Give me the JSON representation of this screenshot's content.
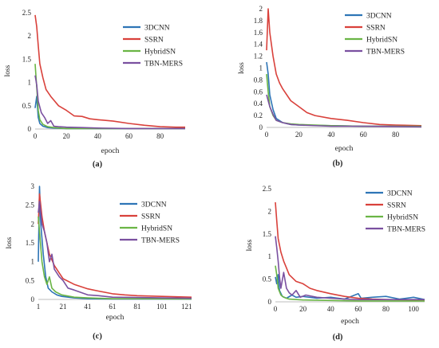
{
  "colors": {
    "3DCNN": "#2e75b6",
    "SSRN": "#d9413b",
    "HybridSN": "#6ab545",
    "TBN-MERS": "#7a50a0"
  },
  "chart_data": [
    {
      "type": "line",
      "panel_label": "(a)",
      "xlabel": "epoch",
      "ylabel": "loss",
      "xlim": [
        0,
        96
      ],
      "ylim": [
        0,
        2.5
      ],
      "xticks": [
        "0",
        "20",
        "40",
        "60",
        "80"
      ],
      "xtick_values": [
        0,
        20,
        40,
        60,
        80
      ],
      "yticks": [
        "0",
        "0.5",
        "1",
        "1.5",
        "2",
        "2.5"
      ],
      "ytick_values": [
        0,
        0.5,
        1,
        1.5,
        2,
        2.5
      ],
      "legend": "right",
      "series": [
        {
          "name": "3DCNN",
          "points": [
            [
              0,
              0.45
            ],
            [
              1,
              0.7
            ],
            [
              2,
              0.25
            ],
            [
              3,
              0.12
            ],
            [
              5,
              0.06
            ],
            [
              8,
              0.03
            ],
            [
              12,
              0.02
            ],
            [
              20,
              0.01
            ],
            [
              40,
              0.01
            ],
            [
              60,
              0.01
            ],
            [
              80,
              0.01
            ],
            [
              96,
              0.01
            ]
          ]
        },
        {
          "name": "SSRN",
          "points": [
            [
              0,
              2.45
            ],
            [
              1,
              2.2
            ],
            [
              2,
              1.8
            ],
            [
              3,
              1.4
            ],
            [
              5,
              1.1
            ],
            [
              7,
              0.85
            ],
            [
              10,
              0.7
            ],
            [
              15,
              0.5
            ],
            [
              20,
              0.4
            ],
            [
              25,
              0.28
            ],
            [
              30,
              0.27
            ],
            [
              35,
              0.22
            ],
            [
              40,
              0.2
            ],
            [
              50,
              0.17
            ],
            [
              60,
              0.12
            ],
            [
              70,
              0.08
            ],
            [
              80,
              0.05
            ],
            [
              90,
              0.04
            ],
            [
              96,
              0.04
            ]
          ]
        },
        {
          "name": "HybridSN",
          "points": [
            [
              0,
              1.4
            ],
            [
              1,
              0.9
            ],
            [
              2,
              0.4
            ],
            [
              3,
              0.2
            ],
            [
              5,
              0.1
            ],
            [
              8,
              0.05
            ],
            [
              12,
              0.03
            ],
            [
              20,
              0.01
            ],
            [
              40,
              0.01
            ],
            [
              60,
              0.01
            ],
            [
              96,
              0.01
            ]
          ]
        },
        {
          "name": "TBN-MERS",
          "points": [
            [
              0,
              1.15
            ],
            [
              1,
              0.95
            ],
            [
              2,
              0.6
            ],
            [
              4,
              0.35
            ],
            [
              6,
              0.25
            ],
            [
              8,
              0.12
            ],
            [
              10,
              0.18
            ],
            [
              12,
              0.06
            ],
            [
              15,
              0.05
            ],
            [
              20,
              0.04
            ],
            [
              30,
              0.03
            ],
            [
              40,
              0.02
            ],
            [
              60,
              0.01
            ],
            [
              96,
              0.01
            ]
          ]
        }
      ]
    },
    {
      "type": "line",
      "panel_label": "(b)",
      "xlabel": "epoch",
      "ylabel": "loss",
      "xlim": [
        0,
        96
      ],
      "ylim": [
        0,
        2
      ],
      "xticks": [
        "0",
        "20",
        "40",
        "60",
        "80"
      ],
      "xtick_values": [
        0,
        20,
        40,
        60,
        80
      ],
      "yticks": [
        "0",
        "0.2",
        "0.4",
        "0.6",
        "0.8",
        "1",
        "1.2",
        "1.4",
        "1.6",
        "1.8",
        "2"
      ],
      "ytick_values": [
        0,
        0.2,
        0.4,
        0.6,
        0.8,
        1.0,
        1.2,
        1.4,
        1.6,
        1.8,
        2.0
      ],
      "legend": "right",
      "series": [
        {
          "name": "3DCNN",
          "points": [
            [
              0,
              1.1
            ],
            [
              1,
              0.9
            ],
            [
              2,
              0.55
            ],
            [
              4,
              0.3
            ],
            [
              6,
              0.15
            ],
            [
              10,
              0.08
            ],
            [
              15,
              0.05
            ],
            [
              20,
              0.04
            ],
            [
              40,
              0.03
            ],
            [
              60,
              0.02
            ],
            [
              80,
              0.02
            ],
            [
              96,
              0.02
            ]
          ]
        },
        {
          "name": "SSRN",
          "points": [
            [
              0,
              1.3
            ],
            [
              1,
              2.0
            ],
            [
              2,
              1.6
            ],
            [
              4,
              1.2
            ],
            [
              6,
              0.9
            ],
            [
              8,
              0.75
            ],
            [
              10,
              0.65
            ],
            [
              15,
              0.45
            ],
            [
              20,
              0.35
            ],
            [
              25,
              0.25
            ],
            [
              30,
              0.2
            ],
            [
              40,
              0.15
            ],
            [
              50,
              0.12
            ],
            [
              60,
              0.08
            ],
            [
              70,
              0.05
            ],
            [
              80,
              0.04
            ],
            [
              96,
              0.03
            ]
          ]
        },
        {
          "name": "HybridSN",
          "points": [
            [
              0,
              0.9
            ],
            [
              1,
              0.6
            ],
            [
              2,
              0.35
            ],
            [
              4,
              0.2
            ],
            [
              6,
              0.12
            ],
            [
              10,
              0.08
            ],
            [
              15,
              0.06
            ],
            [
              20,
              0.05
            ],
            [
              40,
              0.03
            ],
            [
              60,
              0.02
            ],
            [
              96,
              0.02
            ]
          ]
        },
        {
          "name": "TBN-MERS",
          "points": [
            [
              0,
              0.55
            ],
            [
              1,
              0.45
            ],
            [
              2,
              0.35
            ],
            [
              4,
              0.22
            ],
            [
              6,
              0.12
            ],
            [
              10,
              0.08
            ],
            [
              15,
              0.05
            ],
            [
              20,
              0.04
            ],
            [
              40,
              0.02
            ],
            [
              60,
              0.02
            ],
            [
              96,
              0.01
            ]
          ]
        }
      ]
    },
    {
      "type": "line",
      "panel_label": "(c)",
      "xlabel": "epoch",
      "ylabel": "loss",
      "xlim": [
        1,
        125
      ],
      "ylim": [
        0,
        3
      ],
      "xticks": [
        "1",
        "21",
        "41",
        "61",
        "81",
        "101",
        "121"
      ],
      "xtick_values": [
        1,
        21,
        41,
        61,
        81,
        101,
        121
      ],
      "yticks": [
        "0",
        "0.5",
        "1",
        "1.5",
        "2",
        "2.5",
        "3"
      ],
      "ytick_values": [
        0,
        0.5,
        1,
        1.5,
        2,
        2.5,
        3
      ],
      "legend": "right",
      "series": [
        {
          "name": "3DCNN",
          "points": [
            [
              1,
              1.0
            ],
            [
              2,
              3.0
            ],
            [
              3,
              2.0
            ],
            [
              5,
              1.2
            ],
            [
              7,
              0.6
            ],
            [
              9,
              0.3
            ],
            [
              12,
              0.2
            ],
            [
              16,
              0.12
            ],
            [
              20,
              0.08
            ],
            [
              30,
              0.04
            ],
            [
              41,
              0.02
            ],
            [
              61,
              0.01
            ],
            [
              81,
              0.01
            ],
            [
              101,
              0.01
            ],
            [
              125,
              0.01
            ]
          ]
        },
        {
          "name": "SSRN",
          "points": [
            [
              1,
              2.0
            ],
            [
              2,
              2.8
            ],
            [
              4,
              2.2
            ],
            [
              6,
              1.8
            ],
            [
              8,
              1.5
            ],
            [
              10,
              1.2
            ],
            [
              14,
              0.9
            ],
            [
              18,
              0.7
            ],
            [
              21,
              0.55
            ],
            [
              30,
              0.4
            ],
            [
              41,
              0.28
            ],
            [
              50,
              0.22
            ],
            [
              61,
              0.15
            ],
            [
              71,
              0.12
            ],
            [
              81,
              0.1
            ],
            [
              101,
              0.08
            ],
            [
              125,
              0.06
            ]
          ]
        },
        {
          "name": "HybridSN",
          "points": [
            [
              1,
              2.2
            ],
            [
              2,
              1.8
            ],
            [
              4,
              1.0
            ],
            [
              6,
              0.6
            ],
            [
              8,
              0.4
            ],
            [
              10,
              0.6
            ],
            [
              12,
              0.3
            ],
            [
              15,
              0.2
            ],
            [
              20,
              0.12
            ],
            [
              30,
              0.06
            ],
            [
              41,
              0.04
            ],
            [
              61,
              0.02
            ],
            [
              81,
              0.02
            ],
            [
              125,
              0.01
            ]
          ]
        },
        {
          "name": "TBN-MERS",
          "points": [
            [
              1,
              2.3
            ],
            [
              2,
              2.6
            ],
            [
              4,
              2.0
            ],
            [
              6,
              1.8
            ],
            [
              8,
              1.5
            ],
            [
              10,
              1.0
            ],
            [
              12,
              1.2
            ],
            [
              14,
              0.8
            ],
            [
              18,
              0.6
            ],
            [
              21,
              0.5
            ],
            [
              25,
              0.3
            ],
            [
              30,
              0.25
            ],
            [
              41,
              0.12
            ],
            [
              50,
              0.1
            ],
            [
              61,
              0.06
            ],
            [
              81,
              0.05
            ],
            [
              101,
              0.04
            ],
            [
              125,
              0.03
            ]
          ]
        }
      ]
    },
    {
      "type": "line",
      "panel_label": "(d)",
      "xlabel": "epoch",
      "ylabel": "loss",
      "xlim": [
        0,
        108
      ],
      "ylim": [
        0,
        2.5
      ],
      "xticks": [
        "0",
        "20",
        "40",
        "60",
        "80",
        "100"
      ],
      "xtick_values": [
        0,
        20,
        40,
        60,
        80,
        100
      ],
      "yticks": [
        "0",
        "0.5",
        "1",
        "1.5",
        "2",
        "2.5"
      ],
      "ytick_values": [
        0,
        0.5,
        1,
        1.5,
        2,
        2.5
      ],
      "legend": "right",
      "series": [
        {
          "name": "3DCNN",
          "points": [
            [
              0,
              0.55
            ],
            [
              1,
              0.4
            ],
            [
              2,
              0.6
            ],
            [
              3,
              0.25
            ],
            [
              5,
              0.12
            ],
            [
              8,
              0.08
            ],
            [
              12,
              0.15
            ],
            [
              15,
              0.1
            ],
            [
              20,
              0.12
            ],
            [
              30,
              0.08
            ],
            [
              40,
              0.1
            ],
            [
              50,
              0.06
            ],
            [
              60,
              0.18
            ],
            [
              62,
              0.08
            ],
            [
              70,
              0.1
            ],
            [
              80,
              0.12
            ],
            [
              90,
              0.06
            ],
            [
              100,
              0.1
            ],
            [
              108,
              0.05
            ]
          ]
        },
        {
          "name": "SSRN",
          "points": [
            [
              0,
              2.2
            ],
            [
              1,
              1.8
            ],
            [
              2,
              1.4
            ],
            [
              4,
              1.1
            ],
            [
              6,
              0.9
            ],
            [
              8,
              0.75
            ],
            [
              10,
              0.6
            ],
            [
              15,
              0.45
            ],
            [
              20,
              0.4
            ],
            [
              25,
              0.3
            ],
            [
              30,
              0.25
            ],
            [
              40,
              0.18
            ],
            [
              50,
              0.12
            ],
            [
              60,
              0.08
            ],
            [
              70,
              0.06
            ],
            [
              80,
              0.05
            ],
            [
              100,
              0.04
            ],
            [
              108,
              0.04
            ]
          ]
        },
        {
          "name": "HybridSN",
          "points": [
            [
              0,
              0.8
            ],
            [
              1,
              0.6
            ],
            [
              2,
              0.3
            ],
            [
              4,
              0.15
            ],
            [
              6,
              0.1
            ],
            [
              10,
              0.06
            ],
            [
              20,
              0.04
            ],
            [
              40,
              0.03
            ],
            [
              60,
              0.02
            ],
            [
              80,
              0.02
            ],
            [
              108,
              0.02
            ]
          ]
        },
        {
          "name": "TBN-MERS",
          "points": [
            [
              0,
              1.45
            ],
            [
              1,
              1.2
            ],
            [
              2,
              0.9
            ],
            [
              3,
              0.55
            ],
            [
              4,
              0.3
            ],
            [
              6,
              0.65
            ],
            [
              8,
              0.3
            ],
            [
              10,
              0.2
            ],
            [
              12,
              0.15
            ],
            [
              15,
              0.25
            ],
            [
              18,
              0.1
            ],
            [
              22,
              0.15
            ],
            [
              30,
              0.1
            ],
            [
              40,
              0.08
            ],
            [
              50,
              0.06
            ],
            [
              60,
              0.05
            ],
            [
              80,
              0.05
            ],
            [
              108,
              0.05
            ]
          ]
        }
      ]
    }
  ]
}
